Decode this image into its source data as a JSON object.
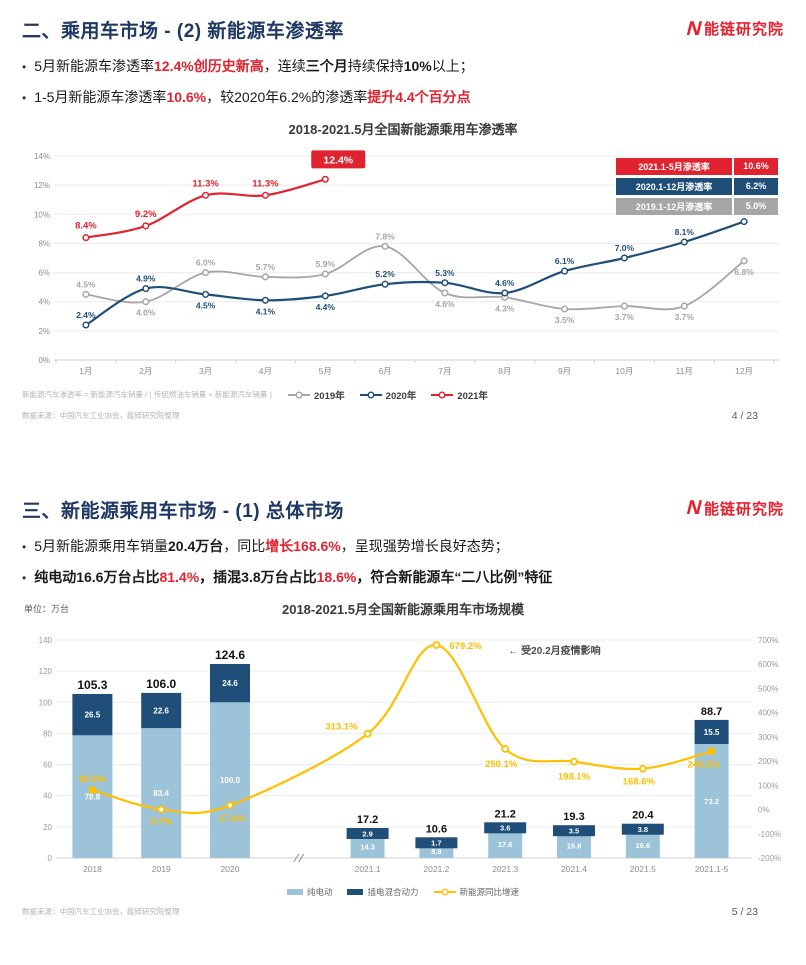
{
  "brand": {
    "name": "能链研究院",
    "icon": "N",
    "color": "#e8212f"
  },
  "colors": {
    "red": "#e0232f",
    "navy": "#1f4e79",
    "gray": "#a6a6a6",
    "lightblue": "#9cc3d8",
    "yellow": "#ffc000",
    "title_navy": "#1f3864"
  },
  "slide1": {
    "title": "二、乘用车市场 - (2) 新能源车渗透率",
    "bullets": [
      [
        {
          "t": "5月新能源车渗透率"
        },
        {
          "t": "12.4%创历史新高",
          "c": "red",
          "b": true
        },
        {
          "t": "，连续"
        },
        {
          "t": "三个月",
          "b": true
        },
        {
          "t": "持续保持"
        },
        {
          "t": "10%",
          "b": true
        },
        {
          "t": "以上；"
        }
      ],
      [
        {
          "t": "1-5月新能源车渗透率"
        },
        {
          "t": "10.6%",
          "c": "red",
          "b": true
        },
        {
          "t": "，较2020年6.2%的渗透率"
        },
        {
          "t": "提升4.4个百分点",
          "c": "red",
          "b": true
        }
      ]
    ],
    "summary_table": [
      {
        "label": "2021.1-5月渗透率",
        "value": "10.6%",
        "bg": "#e0232f"
      },
      {
        "label": "2020.1-12月渗透率",
        "value": "6.2%",
        "bg": "#1f4e79"
      },
      {
        "label": "2019.1-12月渗透率",
        "value": "5.0%",
        "bg": "#a6a6a6"
      }
    ],
    "footnote": "新能源汽车渗透率 = 新能源汽车销量 / ( 传统燃油车销量 + 新能源汽车销量 )",
    "source": "数据来源：中国汽车工业协会，能链研究院整理",
    "page": "4 / 23"
  },
  "slide2": {
    "title": "三、新能源乘用车市场 - (1) 总体市场",
    "bullets": [
      [
        {
          "t": "5月新能源乘用车销量"
        },
        {
          "t": "20.4万台",
          "b": true
        },
        {
          "t": "，同比"
        },
        {
          "t": "增长168.6%",
          "c": "red",
          "b": true
        },
        {
          "t": "，呈现强势增长良好态势；"
        }
      ],
      [
        {
          "t": "纯电动16.6万台占比",
          "b": true
        },
        {
          "t": "81.4%",
          "c": "red",
          "b": true
        },
        {
          "t": "，插混3.8万台占比",
          "b": true
        },
        {
          "t": "18.6%",
          "c": "red",
          "b": true
        },
        {
          "t": "，符合新能源车“二八比例”特征",
          "b": true
        }
      ]
    ],
    "unit": "单位：万台",
    "annotation": "← 受20.2月疫情影响",
    "source": "数据来源：中国汽车工业协会，能链研究院整理",
    "page": "5 / 23"
  },
  "chart_data": [
    {
      "type": "line",
      "title": "2018-2021.5月全国新能源乘用车渗透率",
      "x": [
        "1月",
        "2月",
        "3月",
        "4月",
        "5月",
        "6月",
        "7月",
        "8月",
        "9月",
        "10月",
        "11月",
        "12月"
      ],
      "ylim": [
        0,
        14
      ],
      "ytick_step": 2,
      "grid": true,
      "legend_position": "bottom",
      "series": [
        {
          "name": "2019年",
          "color": "#a6a6a6",
          "values": [
            4.5,
            4.0,
            6.0,
            5.7,
            5.9,
            7.8,
            4.6,
            4.3,
            3.5,
            3.7,
            3.7,
            6.8
          ],
          "label_side": [
            "a",
            "b",
            "a",
            "a",
            "a",
            "a",
            "b",
            "b",
            "b",
            "b",
            "b",
            "b"
          ]
        },
        {
          "name": "2020年",
          "color": "#1f4e79",
          "values": [
            2.4,
            4.9,
            4.5,
            4.1,
            4.4,
            5.2,
            5.3,
            4.6,
            6.1,
            7.0,
            8.1,
            9.5
          ],
          "label_side": [
            "a",
            "a",
            "b",
            "b",
            "b",
            "a",
            "a",
            "a",
            "a",
            "a",
            "a",
            "a"
          ]
        },
        {
          "name": "2021年",
          "color": "#e0232f",
          "values": [
            8.4,
            9.2,
            11.3,
            11.3,
            12.4
          ],
          "label_side": [
            "a",
            "a",
            "a",
            "a",
            "box"
          ]
        }
      ]
    },
    {
      "type": "combo",
      "title": "2018-2021.5月全国新能源乘用车市场规模",
      "categories": [
        "2018",
        "2019",
        "2020",
        "2021.1",
        "2021.2",
        "2021.3",
        "2021.4",
        "2021.5",
        "2021.1-5"
      ],
      "axis_break_after": 2,
      "left_axis": {
        "min": 0,
        "max": 140,
        "step": 20
      },
      "right_axis": {
        "min": -200,
        "max": 700,
        "step": 100,
        "suffix": "%"
      },
      "series": [
        {
          "name": "纯电动",
          "type": "bar",
          "color": "#9cc3d8",
          "values": [
            78.8,
            83.4,
            100.0,
            14.3,
            8.9,
            17.6,
            15.8,
            16.6,
            73.2
          ]
        },
        {
          "name": "插电混合动力",
          "type": "bar",
          "color": "#1f4e79",
          "values": [
            26.5,
            22.6,
            24.6,
            2.9,
            1.7,
            3.6,
            3.5,
            3.8,
            15.5
          ]
        },
        {
          "name": "新能源同比增速",
          "type": "line",
          "color": "#ffc000",
          "values": [
            80.5,
            0.7,
            17.6,
            313.1,
            679.2,
            250.1,
            198.1,
            168.6,
            240.5
          ],
          "labels": [
            "80.5%",
            "0.7%",
            "17.6%",
            "313.1%",
            "679.2%",
            "250.1%",
            "198.1%",
            "168.6%",
            "240.5%"
          ]
        }
      ],
      "totals": [
        "105.3",
        "106.0",
        "124.6",
        "17.2",
        "10.6",
        "21.2",
        "19.3",
        "20.4",
        "88.7"
      ]
    }
  ]
}
